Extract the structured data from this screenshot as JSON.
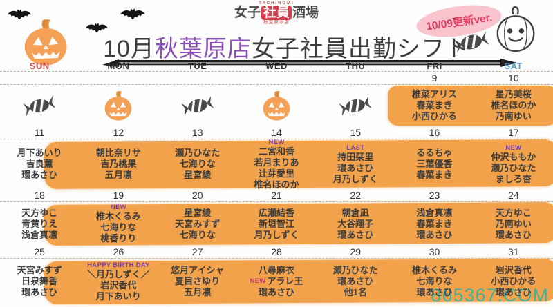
{
  "header": {
    "logo": {
      "top": "TACHINOMI",
      "left": "女子",
      "boxed": "社員",
      "right": "酒場",
      "sub": "秋葉原本店",
      "box_color": "#d6404e"
    },
    "title": {
      "month": "10月",
      "store": "秋葉原店",
      "rest": "女子社員出勤シフト",
      "store_color": "#8a4fb5"
    },
    "badge": {
      "text": "10/09更新ver.",
      "bg_color": "#f9c4ce",
      "text_color": "#e23a5e"
    },
    "decorations": [
      "bat-icon",
      "bat-icon",
      "bat-icon",
      "jack-o-lantern-icon",
      "candy-icon",
      "white-pumpkin-icon"
    ]
  },
  "calendar": {
    "day_headers": [
      {
        "label": "SUN",
        "color": "#c94a4a"
      },
      {
        "label": "MON",
        "color": "#333333"
      },
      {
        "label": "TUE",
        "color": "#333333"
      },
      {
        "label": "WED",
        "color": "#333333"
      },
      {
        "label": "THU",
        "color": "#333333"
      },
      {
        "label": "FRI",
        "color": "#333333"
      },
      {
        "label": "SAT",
        "color": "#5b9bc7"
      }
    ],
    "weeks": [
      {
        "dates": [
          "",
          "",
          "",
          "",
          "",
          "9",
          "10"
        ],
        "highlight": "frisat",
        "cells": [
          {
            "icon": "candy"
          },
          {
            "icon": "pumpkin"
          },
          {
            "icon": "candy"
          },
          {
            "icon": "pumpkin"
          },
          {
            "icon": "candy"
          },
          {
            "names": [
              "椎菜アリス",
              "春菜まき",
              "小西ひかる"
            ]
          },
          {
            "names": [
              "星乃美桜",
              "椎名ほのか",
              "乃南ゆい"
            ]
          }
        ]
      },
      {
        "dates": [
          "11",
          "12",
          "13",
          "14",
          "15",
          "16",
          "17"
        ],
        "highlight": "full",
        "cells": [
          {
            "names": [
              "月下あいり",
              "吉良薫",
              "環あさひ"
            ]
          },
          {
            "names": [
              "朝比奈リサ",
              "吉乃桃果",
              "五月凛"
            ]
          },
          {
            "names": [
              "瀬乃ひなた",
              "七海りな",
              "星宮綾"
            ]
          },
          {
            "tag": "NEW",
            "names": [
              "二宮和香",
              "若月まりあ",
              "辻芽愛里",
              "椎名ほのか"
            ]
          },
          {
            "tag": "LAST",
            "names": [
              "持田栞里",
              "環あさひ",
              "月乃しずく"
            ]
          },
          {
            "names": [
              "るるちゃ",
              "三葉優香",
              "春菜まき"
            ]
          },
          {
            "tag": "NEW",
            "names": [
              "仲沢ももか",
              "瀬乃ひなた",
              "ましろ杏"
            ]
          }
        ]
      },
      {
        "dates": [
          "18",
          "19",
          "20",
          "21",
          "22",
          "23",
          "24"
        ],
        "highlight": "full",
        "cells": [
          {
            "names": [
              "天方ゆこ",
              "青黄りえ",
              "浅倉真凛"
            ]
          },
          {
            "tag": "NEW",
            "names": [
              "椎木くるみ",
              "七海りな",
              "桃香りり"
            ]
          },
          {
            "names": [
              "星宮綾",
              "天宮みすず",
              "七海りな"
            ]
          },
          {
            "names": [
              "広瀬結香",
              "新垣智江",
              "月乃しずく"
            ]
          },
          {
            "names": [
              "朝倉凪",
              "大谷翔子",
              "環あさひ"
            ]
          },
          {
            "names": [
              "浅倉真凛",
              "春菜まき",
              "環あさひ"
            ]
          },
          {
            "names": [
              "天方ゆこ",
              "乃南ゆい",
              "環あさひ"
            ]
          }
        ]
      },
      {
        "dates": [
          "25",
          "26",
          "27",
          "28",
          "29",
          "30",
          "31"
        ],
        "highlight": "full",
        "cells": [
          {
            "names": [
              "天宮みすず",
              "日泉舞香",
              "環あさひ"
            ]
          },
          {
            "tag": "HAPPY BIRTH DAY",
            "names": [
              "＼月乃しずく／",
              "岩沢香代",
              "月下あいり"
            ]
          },
          {
            "names": [
              "悠月アイシャ",
              "夏目さゆり",
              "五月凛"
            ]
          },
          {
            "names": [
              "八尋麻衣",
              {
                "tag": "NEW",
                "text": "アラレ王"
              },
              "環あさひ"
            ]
          },
          {
            "names": [
              "瀬乃ひなた",
              "環あさひ",
              "他1名"
            ]
          },
          {
            "names": [
              "椎木くるみ",
              "七海りな",
              "環あさひ"
            ]
          },
          {
            "names": [
              "岩沢香代",
              "小西ひかる",
              "環あさひ"
            ]
          }
        ]
      }
    ]
  },
  "watermark": {
    "text": "865367.COM",
    "color": "#2fb3a6"
  },
  "colors": {
    "highlight": "#f2a24b",
    "tag_purple": "#7b3fa8",
    "tag_pink": "#c23a6e",
    "name_text": "#3c3c3c"
  }
}
